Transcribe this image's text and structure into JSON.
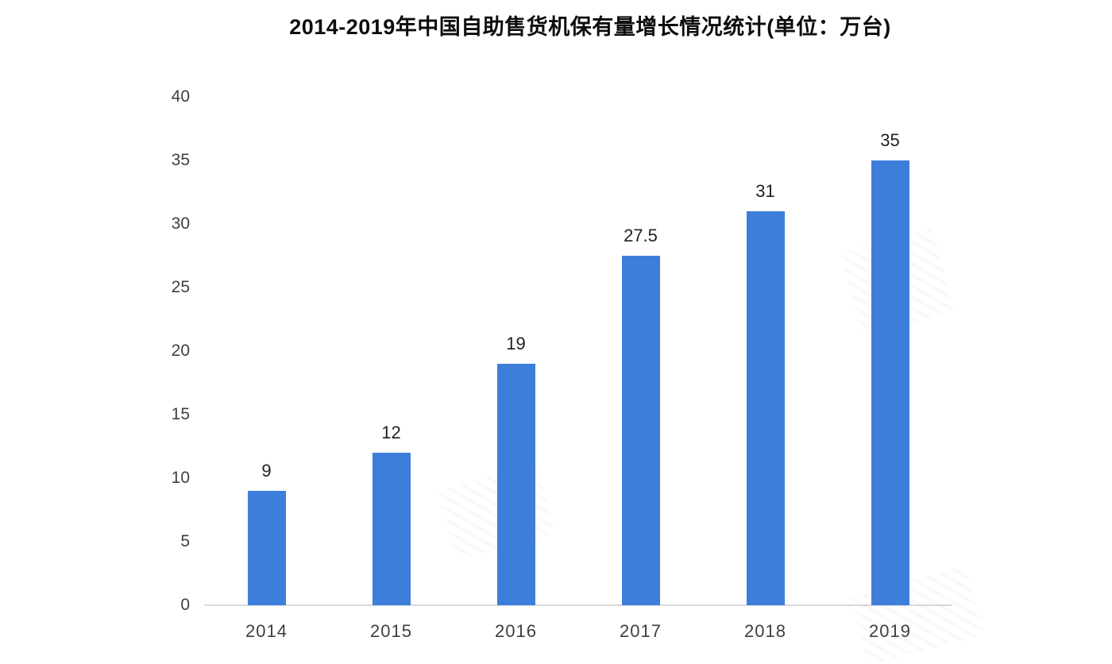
{
  "chart_data": {
    "type": "bar",
    "title": "2014-2019年中国自助售货机保有量增长情况统计(单位：万台)",
    "categories": [
      "2014",
      "2015",
      "2016",
      "2017",
      "2018",
      "2019"
    ],
    "values": [
      9,
      12,
      19,
      27.5,
      31,
      35
    ],
    "value_labels": [
      "9",
      "12",
      "19",
      "27.5",
      "31",
      "35"
    ],
    "yticks": [
      0,
      5,
      10,
      15,
      20,
      25,
      30,
      35,
      40
    ],
    "ylim": [
      0,
      40
    ],
    "xlabel": "",
    "ylabel": "",
    "grid": false,
    "legend": false,
    "bar_color": "#3D7EDB",
    "axis_line_color": "#D9D9D9",
    "tick_text_color": "#3F3F3F",
    "value_text_color": "#1F1F1F",
    "title_color": "#0D0D0D",
    "background_color": "#FFFFFF"
  }
}
